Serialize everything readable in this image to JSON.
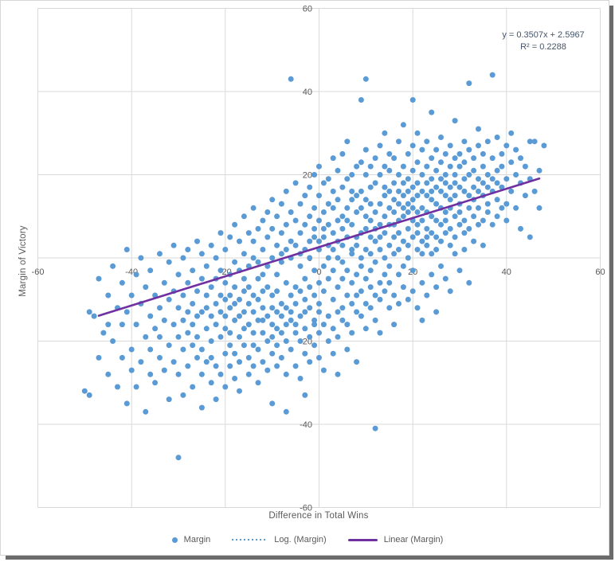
{
  "chart_data": {
    "type": "scatter",
    "title": "",
    "xlabel": "Difference in Total Wins",
    "ylabel": "Margin of Victory",
    "xlim": [
      -60,
      60
    ],
    "ylim": [
      -60,
      60
    ],
    "xticks": [
      -60,
      -40,
      -20,
      0,
      20,
      40,
      60
    ],
    "yticks": [
      -60,
      -40,
      -20,
      0,
      20,
      40,
      60
    ],
    "grid": true,
    "legend_position": "bottom",
    "colors": {
      "point": "#5B9BD5",
      "trend": "#7030A0",
      "gridline": "#D9D9D9",
      "tick_text": "#595959",
      "equation_text": "#44546A"
    },
    "equation": {
      "line1": "y = 0.3507x + 2.5967",
      "line2": "R² = 0.2288"
    },
    "legend": [
      {
        "label": "Margin",
        "marker": "dot",
        "color": "#5B9BD5"
      },
      {
        "label": "Log. (Margin)",
        "marker": "dotted-line",
        "color": "#5B9BD5"
      },
      {
        "label": "Linear (Margin)",
        "marker": "thick-line",
        "color": "#7030A0"
      }
    ],
    "trendline": {
      "type": "linear",
      "slope": 0.3507,
      "intercept": 2.5967,
      "x_start": -47,
      "x_end": 47
    },
    "series": [
      {
        "name": "Margin",
        "points_by_x": [
          [
            -50,
            [
              -32
            ]
          ],
          [
            -49,
            [
              -33,
              -13
            ]
          ],
          [
            -48,
            [
              -14
            ]
          ],
          [
            -47,
            [
              -24,
              -5
            ]
          ],
          [
            -46,
            [
              -18
            ]
          ],
          [
            -45,
            [
              -28,
              -9,
              -16
            ]
          ],
          [
            -44,
            [
              -20,
              -2
            ]
          ],
          [
            -43,
            [
              -31,
              -12
            ]
          ],
          [
            -42,
            [
              -24,
              -6,
              -16
            ]
          ],
          [
            -41,
            [
              -35,
              -13,
              2
            ]
          ],
          [
            -40,
            [
              -22,
              -9,
              -27
            ]
          ],
          [
            -39,
            [
              -16,
              -31,
              -4
            ]
          ],
          [
            -38,
            [
              -25,
              -11,
              0
            ]
          ],
          [
            -37,
            [
              -19,
              -37,
              -7
            ]
          ],
          [
            -36,
            [
              -14,
              -28,
              -3,
              -22
            ]
          ],
          [
            -35,
            [
              -17,
              -9,
              -30
            ]
          ],
          [
            -34,
            [
              -24,
              -12,
              1,
              -19
            ]
          ],
          [
            -33,
            [
              -27,
              -6,
              -15
            ]
          ],
          [
            -32,
            [
              -21,
              -34,
              -10,
              -1
            ]
          ],
          [
            -31,
            [
              -16,
              -25,
              -8,
              3
            ]
          ],
          [
            -30,
            [
              -48,
              -19,
              -12,
              -28,
              -4
            ]
          ],
          [
            -29,
            [
              -22,
              -9,
              -15,
              0,
              -33
            ]
          ],
          [
            -28,
            [
              -18,
              -26,
              -6,
              -13,
              2
            ]
          ],
          [
            -27,
            [
              -21,
              -11,
              -31,
              -3,
              -16
            ]
          ],
          [
            -26,
            [
              -24,
              -8,
              -14,
              4,
              -19
            ]
          ],
          [
            -25,
            [
              -28,
              -13,
              -5,
              -22,
              1,
              -36
            ]
          ],
          [
            -24,
            [
              -17,
              -9,
              -25,
              -2,
              -12
            ]
          ],
          [
            -23,
            [
              -20,
              -30,
              -7,
              -14,
              3,
              -24
            ]
          ],
          [
            -22,
            [
              -16,
              -5,
              -26,
              -11,
              0,
              -34
            ]
          ],
          [
            -21,
            [
              -19,
              -9,
              -28,
              -3,
              -13,
              6
            ]
          ],
          [
            -20,
            [
              -23,
              -14,
              -6,
              -31,
              -17,
              2,
              -10
            ]
          ],
          [
            -19,
            [
              -12,
              -26,
              -4,
              -18,
              5,
              -9,
              -21
            ]
          ],
          [
            -18,
            [
              -15,
              -7,
              -29,
              -1,
              -11,
              -23,
              8
            ]
          ],
          [
            -17,
            [
              -19,
              -10,
              -3,
              -25,
              4,
              -14,
              -32
            ]
          ],
          [
            -16,
            [
              -8,
              -21,
              -13,
              1,
              -17,
              -5,
              10
            ]
          ],
          [
            -15,
            [
              -24,
              -11,
              -2,
              -16,
              6,
              -28,
              -7
            ]
          ],
          [
            -14,
            [
              -18,
              -9,
              -26,
              0,
              -13,
              4,
              -21,
              12
            ]
          ],
          [
            -13,
            [
              -15,
              -5,
              -22,
              -10,
              7,
              -30,
              -1
            ]
          ],
          [
            -12,
            [
              -12,
              -25,
              -8,
              2,
              -18,
              -4,
              9,
              -15
            ]
          ],
          [
            -11,
            [
              -20,
              -7,
              -14,
              5,
              -27,
              -2,
              11
            ]
          ],
          [
            -10,
            [
              -16,
              -9,
              -23,
              0,
              -12,
              7,
              -19,
              -35,
              14
            ]
          ],
          [
            -9,
            [
              -13,
              -4,
              -21,
              3,
              -17,
              -8,
              10,
              -26
            ]
          ],
          [
            -8,
            [
              -11,
              -18,
              -1,
              -24,
              6,
              -14,
              1,
              13
            ]
          ],
          [
            -7,
            [
              -16,
              -6,
              -28,
              2,
              -12,
              8,
              -20,
              -37,
              16
            ]
          ],
          [
            -6,
            [
              -9,
              -15,
              4,
              -22,
              0,
              11,
              -13,
              43
            ]
          ],
          [
            -5,
            [
              -18,
              -7,
              -26,
              3,
              -11,
              9,
              -16,
              18
            ]
          ],
          [
            -4,
            [
              -14,
              -2,
              -20,
              6,
              -8,
              13,
              -29,
              1
            ]
          ],
          [
            -3,
            [
              -17,
              -5,
              -23,
              2,
              -10,
              15,
              -13,
              8,
              -33
            ]
          ],
          [
            -2,
            [
              -7,
              -19,
              4,
              -12,
              10,
              -25,
              0,
              17
            ]
          ],
          [
            -1,
            [
              -15,
              -3,
              -21,
              7,
              -9,
              12,
              -16,
              5,
              20
            ]
          ],
          [
            0,
            [
              -11,
              2,
              -18,
              9,
              -6,
              15,
              -24,
              4,
              -13,
              22
            ]
          ],
          [
            1,
            [
              -8,
              5,
              -16,
              11,
              -2,
              18,
              -27,
              7
            ]
          ],
          [
            2,
            [
              -5,
              8,
              -14,
              3,
              13,
              -20,
              0,
              19
            ]
          ],
          [
            3,
            [
              -10,
              6,
              -17,
              12,
              -3,
              16,
              -23,
              2,
              24
            ]
          ],
          [
            4,
            [
              -7,
              9,
              -13,
              4,
              -19,
              14,
              0,
              21,
              -28
            ]
          ],
          [
            5,
            [
              -12,
              3,
              10,
              -5,
              17,
              -15,
              7,
              25,
              -1
            ]
          ],
          [
            6,
            [
              -9,
              12,
              -16,
              5,
              19,
              -3,
              9,
              -22,
              28
            ]
          ],
          [
            7,
            [
              -6,
              14,
              2,
              -11,
              20,
              -18,
              8,
              16,
              1
            ]
          ],
          [
            8,
            [
              -13,
              5,
              11,
              -4,
              22,
              -9,
              15,
              -25,
              3
            ]
          ],
          [
            9,
            [
              -8,
              16,
              0,
              12,
              -14,
              6,
              23,
              -2,
              38
            ]
          ],
          [
            10,
            [
              -11,
              7,
              14,
              -5,
              20,
              2,
              -17,
              10,
              26,
              43
            ]
          ],
          [
            11,
            [
              -3,
              9,
              17,
              -12,
              5,
              22,
              -7,
              13,
              1
            ]
          ],
          [
            12,
            [
              -9,
              11,
              4,
              18,
              -15,
              7,
              24,
              -1,
              -41
            ]
          ],
          [
            13,
            [
              -6,
              13,
              2,
              20,
              -10,
              8,
              27,
              5,
              -18
            ]
          ],
          [
            14,
            [
              0,
              15,
              -8,
              10,
              22,
              -4,
              17,
              6,
              30
            ]
          ],
          [
            15,
            [
              -12,
              8,
              16,
              3,
              21,
              -6,
              12,
              25,
              -2
            ]
          ],
          [
            16,
            [
              5,
              18,
              -9,
              11,
              24,
              1,
              14,
              -16,
              8
            ]
          ],
          [
            17,
            [
              -4,
              13,
              20,
              2,
              16,
              -11,
              9,
              28,
              6
            ]
          ],
          [
            18,
            [
              10,
              -7,
              15,
              22,
              4,
              18,
              -2,
              12,
              32
            ]
          ],
          [
            19,
            [
              7,
              16,
              -10,
              13,
              25,
              3,
              19,
              0,
              11
            ]
          ],
          [
            20,
            [
              14,
              5,
              21,
              -8,
              17,
              9,
              27,
              -3,
              12,
              38
            ]
          ],
          [
            21,
            [
              8,
              18,
              2,
              15,
              -12,
              23,
              6,
              11,
              30
            ]
          ],
          [
            22,
            [
              12,
              4,
              20,
              -6,
              16,
              26,
              1,
              9,
              -15
            ]
          ],
          [
            23,
            [
              15,
              7,
              22,
              3,
              18,
              -9,
              11,
              28,
              5
            ]
          ],
          [
            24,
            [
              10,
              19,
              -4,
              14,
              24,
              6,
              16,
              1,
              35
            ]
          ],
          [
            25,
            [
              13,
              5,
              21,
              -7,
              17,
              9,
              26,
              2,
              -13
            ]
          ],
          [
            26,
            [
              16,
              8,
              23,
              4,
              19,
              -2,
              12,
              29
            ]
          ],
          [
            27,
            [
              11,
              20,
              6,
              15,
              25,
              -5,
              18,
              9
            ]
          ],
          [
            28,
            [
              14,
              7,
              22,
              3,
              17,
              27,
              -8,
              12
            ]
          ],
          [
            29,
            [
              18,
              10,
              24,
              5,
              15,
              1,
              20,
              33
            ]
          ],
          [
            30,
            [
              13,
              22,
              8,
              17,
              -3,
              25,
              11
            ]
          ],
          [
            31,
            [
              16,
              9,
              23,
              6,
              19,
              28,
              2
            ]
          ],
          [
            32,
            [
              12,
              20,
              15,
              26,
              7,
              -6,
              42
            ]
          ],
          [
            33,
            [
              17,
              10,
              24,
              14,
              4,
              21
            ]
          ],
          [
            34,
            [
              19,
              12,
              27,
              8,
              16,
              31
            ]
          ],
          [
            35,
            [
              15,
              22,
              9,
              18,
              3,
              25
            ]
          ],
          [
            36,
            [
              20,
              13,
              28,
              11,
              17
            ]
          ],
          [
            37,
            [
              16,
              24,
              8,
              44,
              19
            ]
          ],
          [
            38,
            [
              21,
              14,
              29,
              10,
              18
            ]
          ],
          [
            39,
            [
              17,
              25,
              12,
              22
            ]
          ],
          [
            40,
            [
              19,
              13,
              27,
              9
            ]
          ],
          [
            41,
            [
              23,
              16,
              30
            ]
          ],
          [
            42,
            [
              20,
              12,
              26
            ]
          ],
          [
            43,
            [
              18,
              24,
              7
            ]
          ],
          [
            44,
            [
              22,
              15
            ]
          ],
          [
            45,
            [
              19,
              28,
              5
            ]
          ],
          [
            46,
            [
              28,
              16
            ]
          ],
          [
            47,
            [
              21,
              12
            ]
          ],
          [
            48,
            [
              27
            ]
          ]
        ]
      }
    ]
  }
}
